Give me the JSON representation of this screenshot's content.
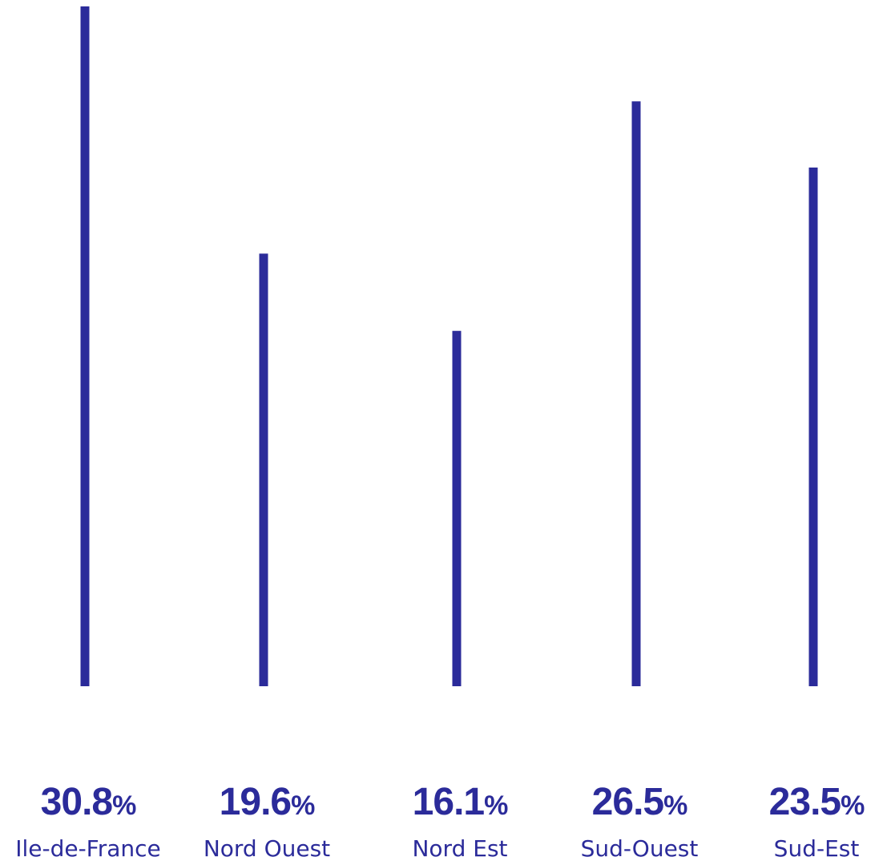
{
  "chart_data": {
    "type": "bar",
    "categories": [
      "Ile-de-France",
      "Nord Ouest",
      "Nord Est",
      "Sud-Ouest",
      "Sud-Est"
    ],
    "values": [
      30.8,
      19.6,
      16.1,
      26.5,
      23.5
    ],
    "value_labels": [
      "30.8",
      "19.6",
      "16.1",
      "26.5",
      "23.5"
    ],
    "unit": "%",
    "title": "",
    "xlabel": "",
    "ylabel": "",
    "ylim": [
      0,
      30.8
    ],
    "grid": false,
    "legend": "none",
    "bar_style": "thin vertical line"
  },
  "colors": {
    "bar": "#2b2b9a",
    "text": "#2b2b9a",
    "background": "#ffffff"
  }
}
